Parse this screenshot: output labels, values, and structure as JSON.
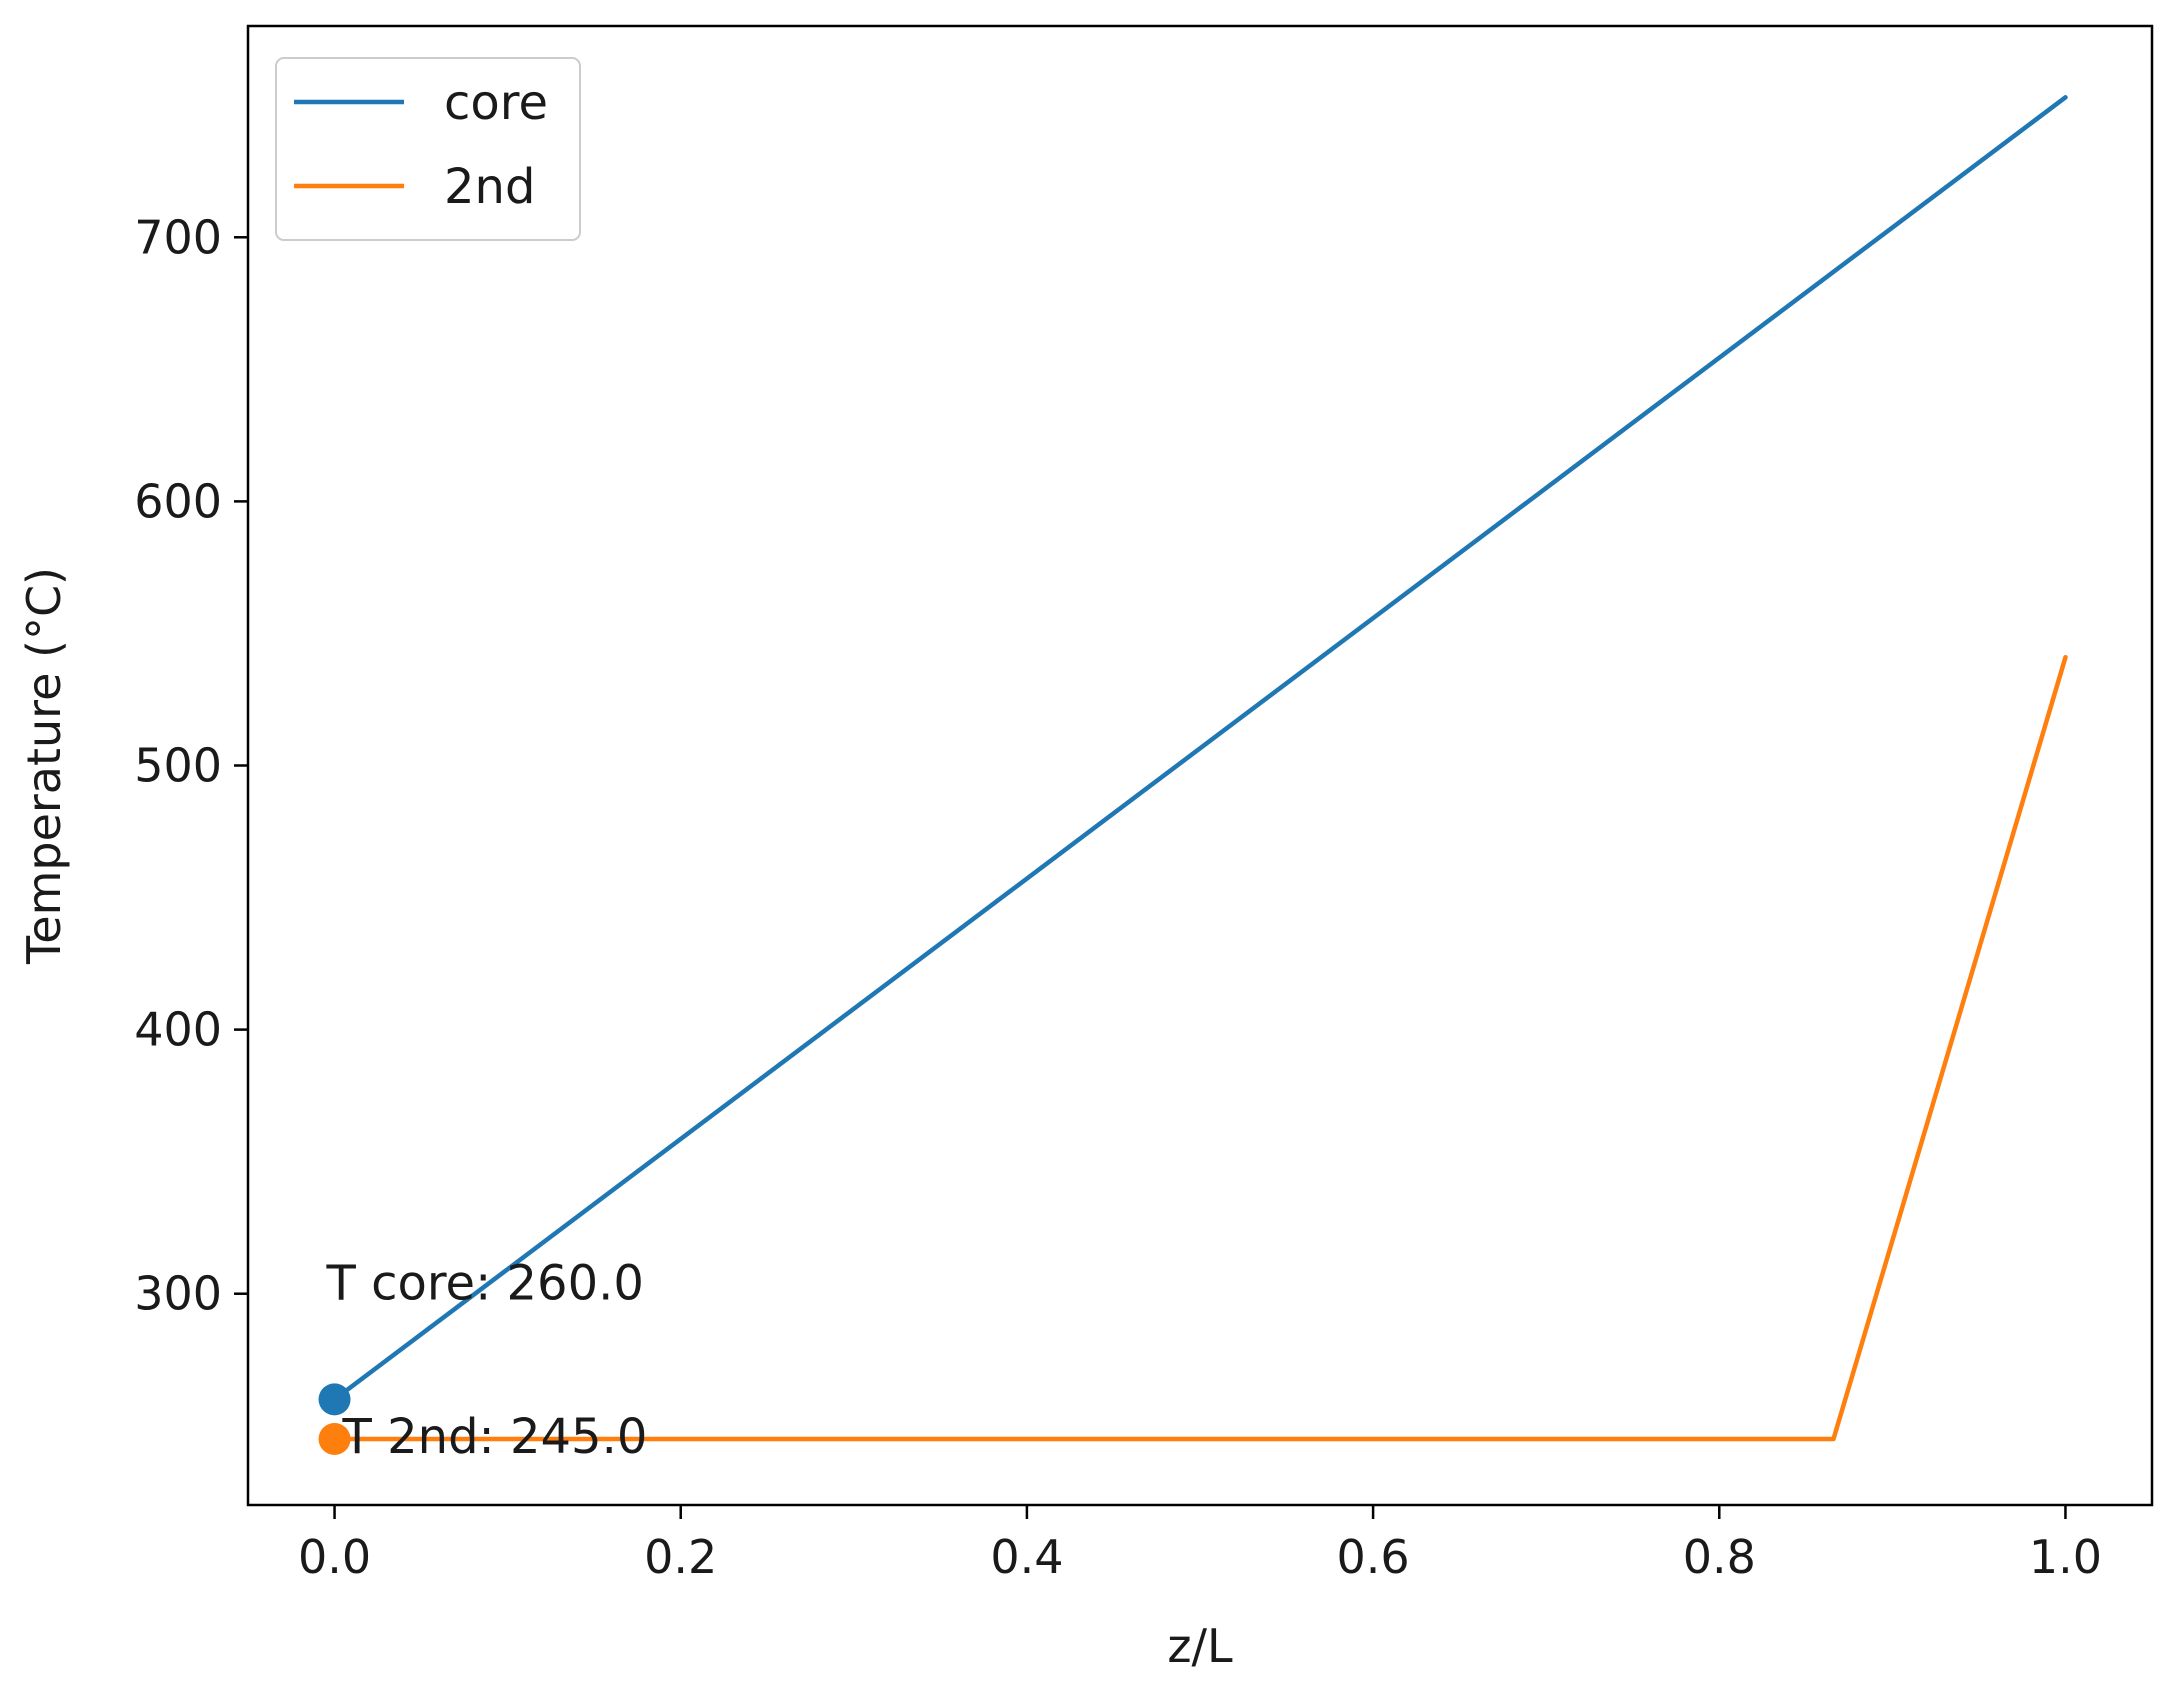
{
  "chart_data": {
    "type": "line",
    "xlabel": "z/L",
    "ylabel": "Temperature (°C)",
    "xlim": [
      -0.05,
      1.05
    ],
    "ylim": [
      220,
      780
    ],
    "xticks": [
      0.0,
      0.2,
      0.4,
      0.6,
      0.8,
      1.0
    ],
    "xtick_labels": [
      "0.0",
      "0.2",
      "0.4",
      "0.6",
      "0.8",
      "1.0"
    ],
    "yticks": [
      300,
      400,
      500,
      600,
      700
    ],
    "ytick_labels": [
      "300",
      "400",
      "500",
      "600",
      "700"
    ],
    "grid": false,
    "legend_position": "upper-left",
    "series": [
      {
        "name": "core",
        "color": "#1f77b4",
        "x": [
          0.0,
          1.0
        ],
        "y": [
          260,
          753
        ]
      },
      {
        "name": "2nd",
        "color": "#ff7f0e",
        "x": [
          0.0,
          0.866,
          1.0
        ],
        "y": [
          245,
          245,
          541
        ]
      }
    ],
    "markers": [
      {
        "series": "core",
        "x": 0.0,
        "y": 260,
        "color": "#1f77b4"
      },
      {
        "series": "2nd",
        "x": 0.0,
        "y": 245,
        "color": "#ff7f0e"
      }
    ],
    "annotations": [
      {
        "text": "T core: 260.0",
        "x": 0.0,
        "y": 260
      },
      {
        "text": "T 2nd: 245.0",
        "x": 0.0,
        "y": 245
      }
    ]
  }
}
